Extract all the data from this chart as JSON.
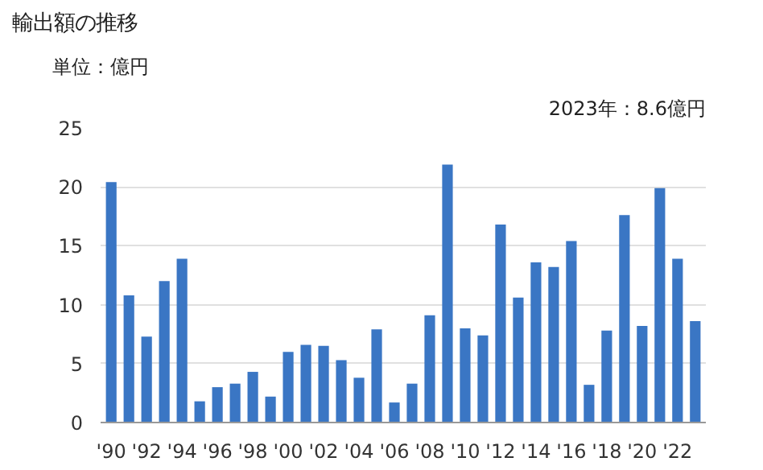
{
  "chart_data": {
    "type": "bar",
    "title": "輸出額の推移",
    "ylabel": "単位：億円",
    "annotations": [
      "2023年：8.6億円"
    ],
    "categories": [
      "'90",
      null,
      "'92",
      null,
      "'94",
      null,
      "'96",
      null,
      "'98",
      null,
      "'00",
      null,
      "'02",
      null,
      "'04",
      null,
      "'06",
      null,
      "'08",
      null,
      "'10",
      null,
      "'12",
      null,
      "'14",
      null,
      "'16",
      null,
      "'18",
      null,
      "'20",
      null,
      "'22",
      null
    ],
    "values": [
      20.4,
      10.8,
      7.3,
      12,
      13.9,
      1.8,
      3.0,
      3.3,
      4.3,
      2.2,
      6.0,
      6.6,
      6.5,
      5.3,
      3.8,
      7.9,
      1.7,
      3.3,
      9.1,
      21.9,
      8.0,
      7.4,
      16.8,
      10.6,
      13.6,
      13.2,
      15.4,
      3.2,
      7.8,
      17.6,
      8.2,
      19.9,
      13.9,
      8.6
    ],
    "color": "#3a76c4",
    "ylim": [
      0,
      25
    ],
    "yticks": [
      0,
      5,
      10,
      15,
      20,
      25
    ],
    "grid": "y"
  }
}
